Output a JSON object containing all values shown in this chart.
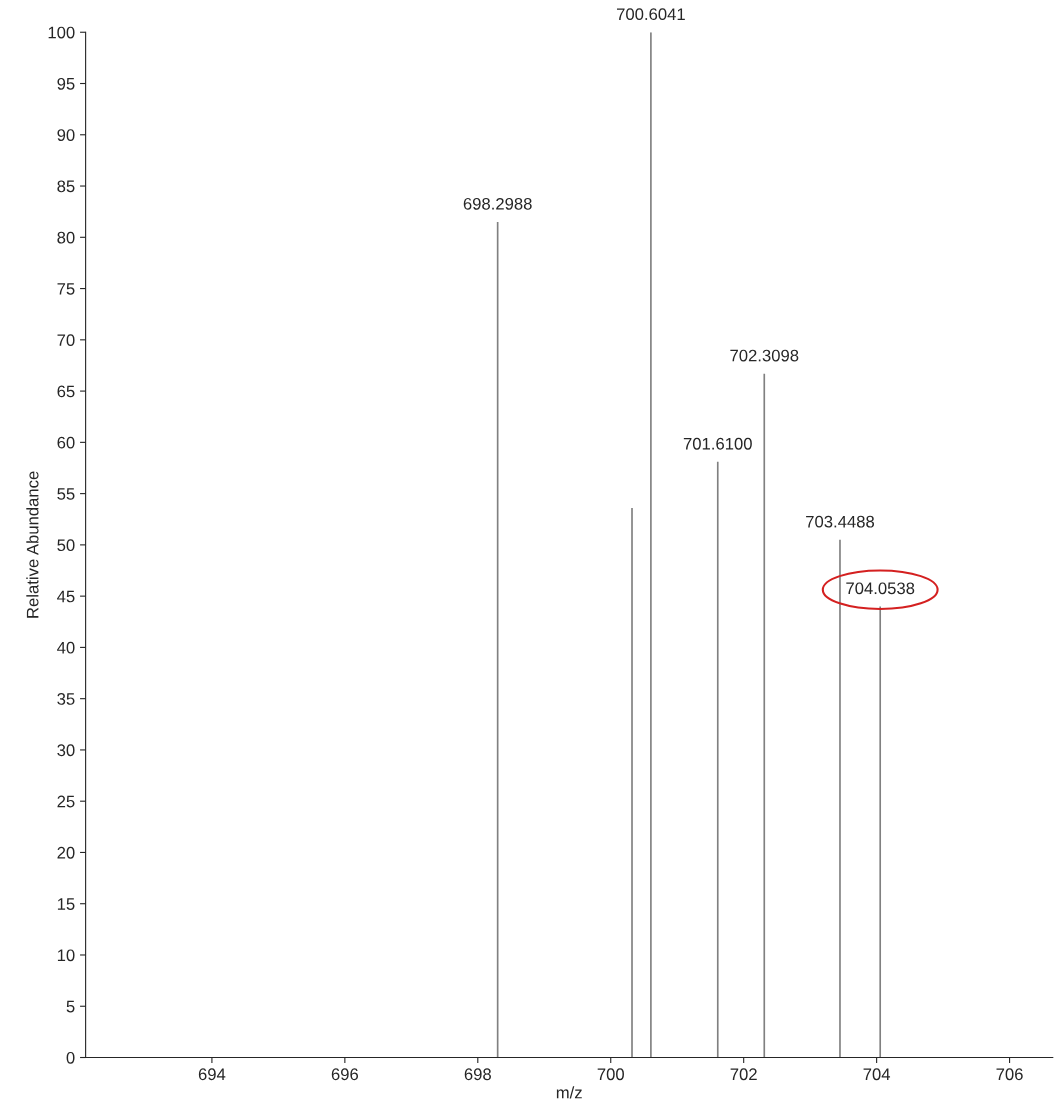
{
  "chart_data": {
    "type": "bar",
    "xlabel": "m/z",
    "ylabel": "Relative Abundance",
    "x": [
      698.2988,
      700.32,
      700.6041,
      701.61,
      702.3098,
      703.4488,
      704.0538
    ],
    "values": [
      81.5,
      53.6,
      100,
      58.1,
      66.7,
      50.5,
      44.0
    ],
    "color": "#808080",
    "annotations": [
      {
        "text": "698.2988",
        "x": 698.2988,
        "y": 81.5
      },
      {
        "text": "700.6041",
        "x": 700.6041,
        "y": 100
      },
      {
        "text": "701.6100",
        "x": 701.61,
        "y": 58.1
      },
      {
        "text": "702.3098",
        "x": 702.3098,
        "y": 66.7
      },
      {
        "text": "703.4488",
        "x": 703.4488,
        "y": 50.5
      },
      {
        "text": "704.0538",
        "x": 704.0538,
        "y": 44.0
      }
    ],
    "xlim": [
      692.1,
      706.65
    ],
    "xticks": [
      694,
      696,
      698,
      700,
      702,
      704,
      706
    ],
    "ylim": [
      0,
      100
    ],
    "yticks": [
      0,
      5,
      10,
      15,
      20,
      25,
      30,
      35,
      40,
      45,
      50,
      55,
      60,
      65,
      70,
      75,
      80,
      85,
      90,
      95,
      100
    ],
    "grid": false,
    "legend": false
  }
}
